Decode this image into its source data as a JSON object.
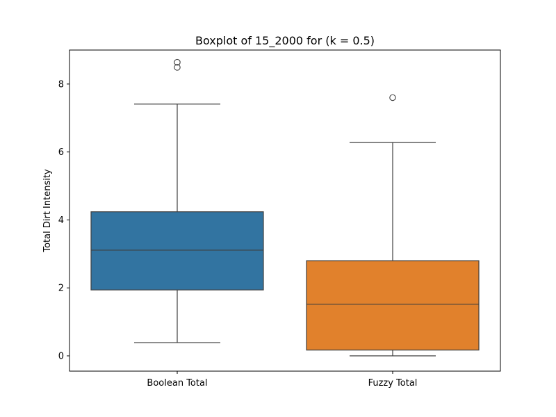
{
  "chart_data": {
    "type": "box",
    "title": "Boxplot of 15_2000 for (k = 0.5)",
    "xlabel": "",
    "ylabel": "Total Dirt Intensity",
    "ylim": [
      -0.45,
      9.0
    ],
    "yticks": [
      0,
      2,
      4,
      6,
      8
    ],
    "grid": false,
    "categories": [
      "Boolean Total",
      "Fuzzy Total"
    ],
    "boxes": [
      {
        "category": "Boolean Total",
        "color": "#3274a1",
        "whisker_low": 0.39,
        "q1": 1.94,
        "median": 3.11,
        "q3": 4.24,
        "whisker_high": 7.41,
        "outliers": [
          8.49,
          8.64
        ]
      },
      {
        "category": "Fuzzy Total",
        "color": "#e1812c",
        "whisker_low": 0.0,
        "q1": 0.17,
        "median": 1.52,
        "q3": 2.8,
        "whisker_high": 6.28,
        "outliers": [
          7.6
        ]
      }
    ]
  }
}
